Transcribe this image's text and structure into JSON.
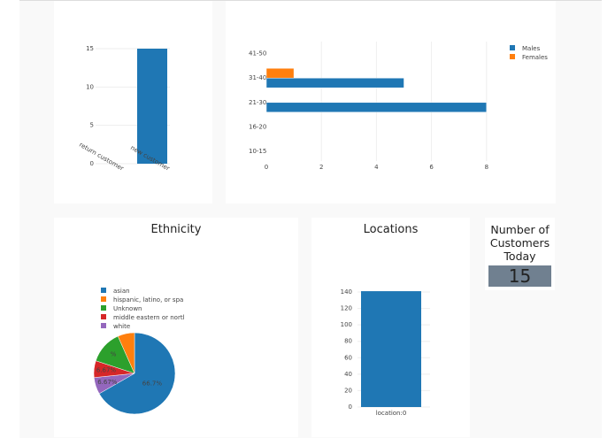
{
  "colors": {
    "blue": "#1f77b4",
    "orange": "#ff7f0e",
    "green": "#2ca02c",
    "red": "#d62728",
    "purple": "#9467bd",
    "counter_bg": "#708090"
  },
  "chart_data": [
    {
      "type": "bar",
      "categories": [
        "return customer",
        "new customer"
      ],
      "values": [
        0,
        15
      ],
      "ylim": [
        0,
        15
      ],
      "yticks": [
        0,
        5,
        10,
        15
      ]
    },
    {
      "type": "bar",
      "orientation": "horizontal",
      "categories": [
        "10-15",
        "16-20",
        "21-30",
        "31-40",
        "41-50"
      ],
      "series": [
        {
          "name": "Males",
          "values": [
            0,
            0,
            8,
            5,
            0
          ]
        },
        {
          "name": "Females",
          "values": [
            0,
            0,
            0,
            1,
            0
          ]
        }
      ],
      "xticks": [
        0,
        2,
        4,
        6,
        8
      ],
      "legend": "top-right"
    },
    {
      "type": "pie",
      "title": "Ethnicity",
      "labels": [
        "asian",
        "hispanic, latino, or spa",
        "Unknown",
        "middle eastern or nortl",
        "white"
      ],
      "values": [
        66.7,
        6.67,
        13.3,
        6.67,
        6.67
      ],
      "slice_labels": [
        "66.7%",
        "",
        "%",
        "6.67%",
        "6.67%"
      ],
      "legend": "top-left"
    },
    {
      "type": "bar",
      "title": "Locations",
      "categories": [
        "location:0"
      ],
      "values": [
        141
      ],
      "ylim": [
        0,
        140
      ],
      "yticks": [
        0,
        20,
        40,
        60,
        80,
        100,
        120,
        140
      ]
    }
  ],
  "counter": {
    "title": "Number of Customers Today",
    "value": "15"
  }
}
